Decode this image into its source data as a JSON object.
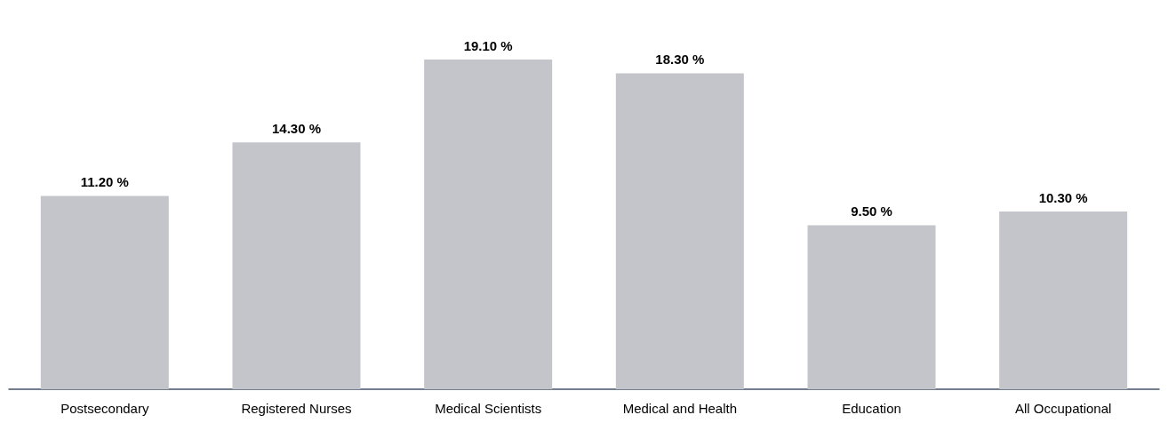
{
  "chart_data": {
    "type": "bar",
    "categories": [
      "Postsecondary",
      "Registered Nurses",
      "Medical Scientists",
      "Medical and Health",
      "Education",
      "All Occupational"
    ],
    "values": [
      11.2,
      14.3,
      19.1,
      18.3,
      9.5,
      10.3
    ],
    "value_labels": [
      "11.20 %",
      "14.30 %",
      "19.10 %",
      "18.30 %",
      "9.50 %",
      "10.30 %"
    ],
    "color": "#c4c5ca",
    "grid": false
  }
}
